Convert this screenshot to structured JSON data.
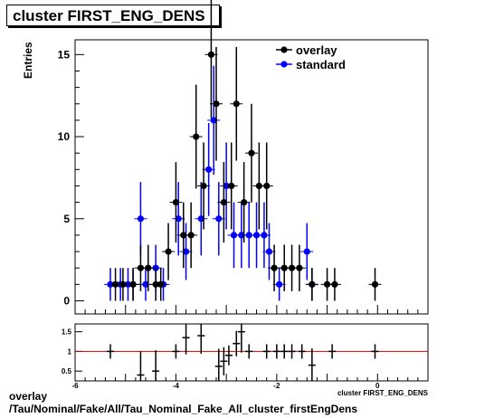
{
  "title": "cluster FIRST_ENG_DENS",
  "footer": {
    "line1": "overlay",
    "line2": "/Tau/Nominal/Fake/All/Tau_Nominal_Fake_All_cluster_firstEngDens"
  },
  "colors": {
    "overlay": "#000000",
    "standard": "#0000ff",
    "ratio_line": "#cc0000"
  },
  "chart_data": [
    {
      "type": "scatter",
      "title": "cluster FIRST_ENG_DENS",
      "ylabel": "Entries",
      "xlim": [
        -6,
        1
      ],
      "ylim": [
        -0.8,
        15.9
      ],
      "yticks": [
        0,
        5,
        10,
        15
      ],
      "legend": {
        "position": "top-right",
        "entries": [
          "overlay",
          "standard"
        ]
      },
      "series": [
        {
          "name": "overlay",
          "x": [
            -5.2,
            -5.05,
            -4.85,
            -4.7,
            -4.55,
            -4.4,
            -4.3,
            -4.15,
            -4.0,
            -3.85,
            -3.7,
            -3.6,
            -3.45,
            -3.3,
            -3.2,
            -3.05,
            -2.9,
            -2.8,
            -2.65,
            -2.5,
            -2.35,
            -2.2,
            -2.05,
            -1.85,
            -1.7,
            -1.55,
            -1.3,
            -1.0,
            -0.85,
            -0.05
          ],
          "y": [
            1,
            1,
            1,
            2,
            2,
            1,
            1,
            3,
            6,
            4,
            4,
            10,
            7,
            15,
            12,
            6,
            7,
            12,
            6,
            9,
            7,
            7,
            2,
            2,
            2,
            2,
            1,
            1,
            1,
            1
          ]
        },
        {
          "name": "standard",
          "x": [
            -5.3,
            -5.1,
            -4.95,
            -4.85,
            -4.7,
            -4.6,
            -4.4,
            -4.25,
            -3.95,
            -3.8,
            -3.5,
            -3.35,
            -3.25,
            -3.15,
            -3.0,
            -2.85,
            -2.7,
            -2.55,
            -2.4,
            -2.25,
            -2.15,
            -1.95,
            -1.4,
            -1.3
          ],
          "y": [
            1,
            1,
            1,
            1,
            5,
            1,
            2,
            1,
            5,
            3,
            5,
            8,
            11,
            5,
            7,
            4,
            4,
            4,
            4,
            4,
            3,
            1,
            3,
            1
          ]
        }
      ]
    },
    {
      "type": "scatter",
      "xlim": [
        -6,
        1
      ],
      "ylim": [
        0.25,
        1.7
      ],
      "xticks": [
        -6,
        -4,
        -2,
        0
      ],
      "yticks": [
        0.5,
        1,
        1.5
      ],
      "xlabel": "cluster FIRST_ENG_DENS",
      "reference_line": 1,
      "series": [
        {
          "name": "ratio",
          "x": [
            -5.3,
            -4.7,
            -4.4,
            -4.0,
            -3.8,
            -3.5,
            -3.15,
            -3.05,
            -2.95,
            -2.8,
            -2.7,
            -2.55,
            -2.2,
            -2.0,
            -1.85,
            -1.7,
            -1.5,
            -1.3,
            -0.9,
            -0.05
          ],
          "y": [
            1.0,
            0.4,
            0.5,
            1.0,
            1.35,
            1.4,
            0.62,
            0.75,
            0.9,
            1.2,
            1.5,
            1.0,
            1.0,
            1.0,
            1.0,
            1.0,
            1.0,
            0.65,
            1.0,
            1.0
          ]
        }
      ]
    }
  ]
}
